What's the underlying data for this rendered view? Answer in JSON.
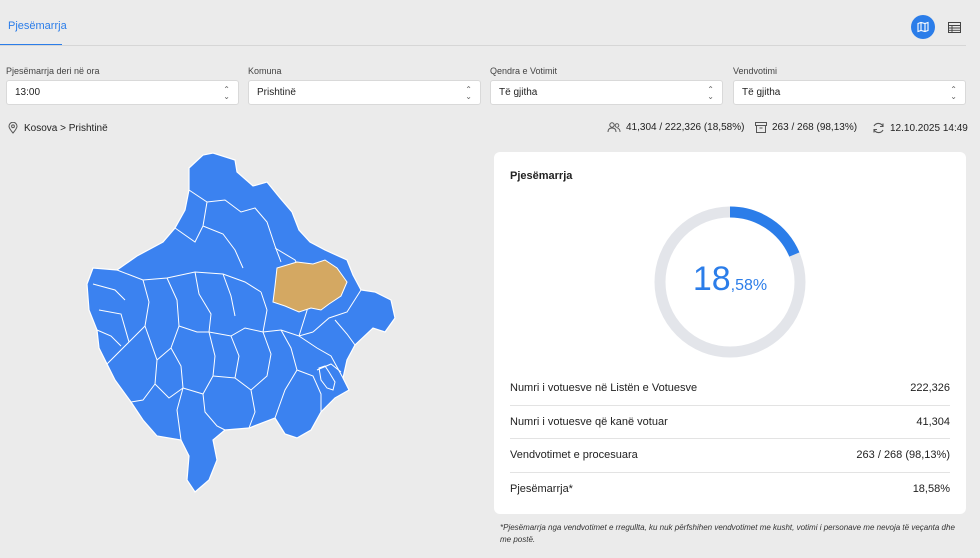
{
  "header": {
    "tab_label": "Pjesëmarrja",
    "view_map_icon": "map-icon",
    "view_table_icon": "table-icon",
    "accent": "#2b7de9"
  },
  "filters": [
    {
      "label": "Pjesëmarrja deri në ora",
      "value": "13:00"
    },
    {
      "label": "Komuna",
      "value": "Prishtinë"
    },
    {
      "label": "Qendra e Votimit",
      "value": "Të gjitha"
    },
    {
      "label": "Vendvotimi",
      "value": "Të gjitha"
    }
  ],
  "breadcrumb": "Kosova > Prishtinë",
  "stats": {
    "voters": "41,304 / 222,326 (18,58%)",
    "stations": "263 / 268 (98,13%)",
    "updated": "12.10.2025 14:49"
  },
  "map": {
    "region_color": "#3b82f0",
    "selected_color": "#d4a862",
    "selected_region": "Prishtinë"
  },
  "card": {
    "title": "Pjesëmarrja",
    "percent_whole": "18",
    "percent_fraction": ",58%",
    "percent_value": 18.58,
    "rows": [
      {
        "label": "Numri i votuesve në Listën e Votuesve",
        "value": "222,326"
      },
      {
        "label": "Numri i votuesve që kanë votuar",
        "value": "41,304"
      },
      {
        "label": "Vendvotimet e procesuara",
        "value": "263 / 268 (98,13%)"
      },
      {
        "label": "Pjesëmarrja*",
        "value": "18,58%"
      }
    ]
  },
  "footnote": "*Pjesëmarrja nga vendvotimet e rregullta, ku nuk përfshihen vendvotimet me kusht, votimi i personave me nevoja të veçanta dhe me postë."
}
